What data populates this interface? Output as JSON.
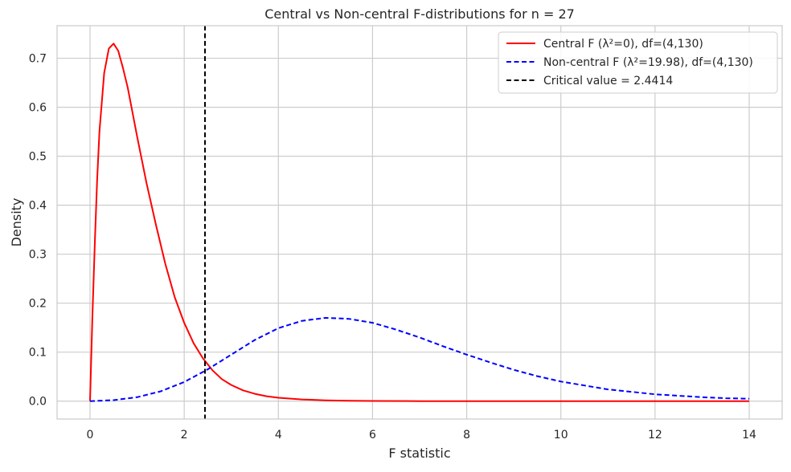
{
  "chart_data": {
    "type": "line",
    "title": "Central vs Non-central F-distributions for n = 27",
    "xlabel": "F statistic",
    "ylabel": "Density",
    "xlim": [
      -0.7,
      14.7
    ],
    "ylim": [
      -0.0365,
      0.7665
    ],
    "xticks": [
      0,
      2,
      4,
      6,
      8,
      10,
      12,
      14
    ],
    "xtick_labels": [
      "0",
      "2",
      "4",
      "6",
      "8",
      "10",
      "12",
      "14"
    ],
    "yticks": [
      0.0,
      0.1,
      0.2,
      0.3,
      0.4,
      0.5,
      0.6,
      0.7
    ],
    "ytick_labels": [
      "0.0",
      "0.1",
      "0.2",
      "0.3",
      "0.4",
      "0.5",
      "0.6",
      "0.7"
    ],
    "grid": true,
    "legend_position": "top-right",
    "series": [
      {
        "name": "Central F (λ²=0), df=(4,130)",
        "color": "#ff0000",
        "style": "solid",
        "x": [
          0,
          0.05,
          0.1,
          0.15,
          0.2,
          0.3,
          0.4,
          0.5,
          0.6,
          0.7,
          0.8,
          1.0,
          1.2,
          1.4,
          1.6,
          1.8,
          2.0,
          2.2,
          2.4,
          2.6,
          2.8,
          3.0,
          3.25,
          3.5,
          3.75,
          4.0,
          4.5,
          5.0,
          5.5,
          6.0,
          7.0,
          8.0,
          9.0,
          10.0,
          12.0,
          14.0
        ],
        "y": [
          0,
          0.17,
          0.32,
          0.45,
          0.55,
          0.67,
          0.72,
          0.73,
          0.715,
          0.68,
          0.64,
          0.54,
          0.445,
          0.36,
          0.28,
          0.212,
          0.16,
          0.118,
          0.087,
          0.063,
          0.045,
          0.033,
          0.022,
          0.015,
          0.01,
          0.007,
          0.0035,
          0.0017,
          0.0008,
          0.0004,
          0.0001,
          3e-05,
          1e-05,
          0,
          0,
          0
        ]
      },
      {
        "name": "Non-central F (λ²=19.98), df=(4,130)",
        "color": "#0000ff",
        "style": "dashed",
        "x": [
          0,
          0.5,
          1.0,
          1.5,
          2.0,
          2.5,
          3.0,
          3.5,
          4.0,
          4.5,
          5.0,
          5.5,
          6.0,
          6.5,
          7.0,
          7.5,
          8.0,
          8.5,
          9.0,
          9.5,
          10.0,
          10.5,
          11.0,
          11.5,
          12.0,
          12.5,
          13.0,
          13.5,
          14.0
        ],
        "y": [
          0,
          0.002,
          0.008,
          0.02,
          0.039,
          0.065,
          0.095,
          0.125,
          0.149,
          0.164,
          0.17,
          0.168,
          0.16,
          0.146,
          0.13,
          0.112,
          0.095,
          0.079,
          0.064,
          0.051,
          0.04,
          0.032,
          0.024,
          0.019,
          0.014,
          0.011,
          0.008,
          0.006,
          0.005
        ]
      },
      {
        "name": "Critical value = 2.4414",
        "color": "#000000",
        "style": "dashed",
        "vline_x": 2.4414
      }
    ]
  }
}
